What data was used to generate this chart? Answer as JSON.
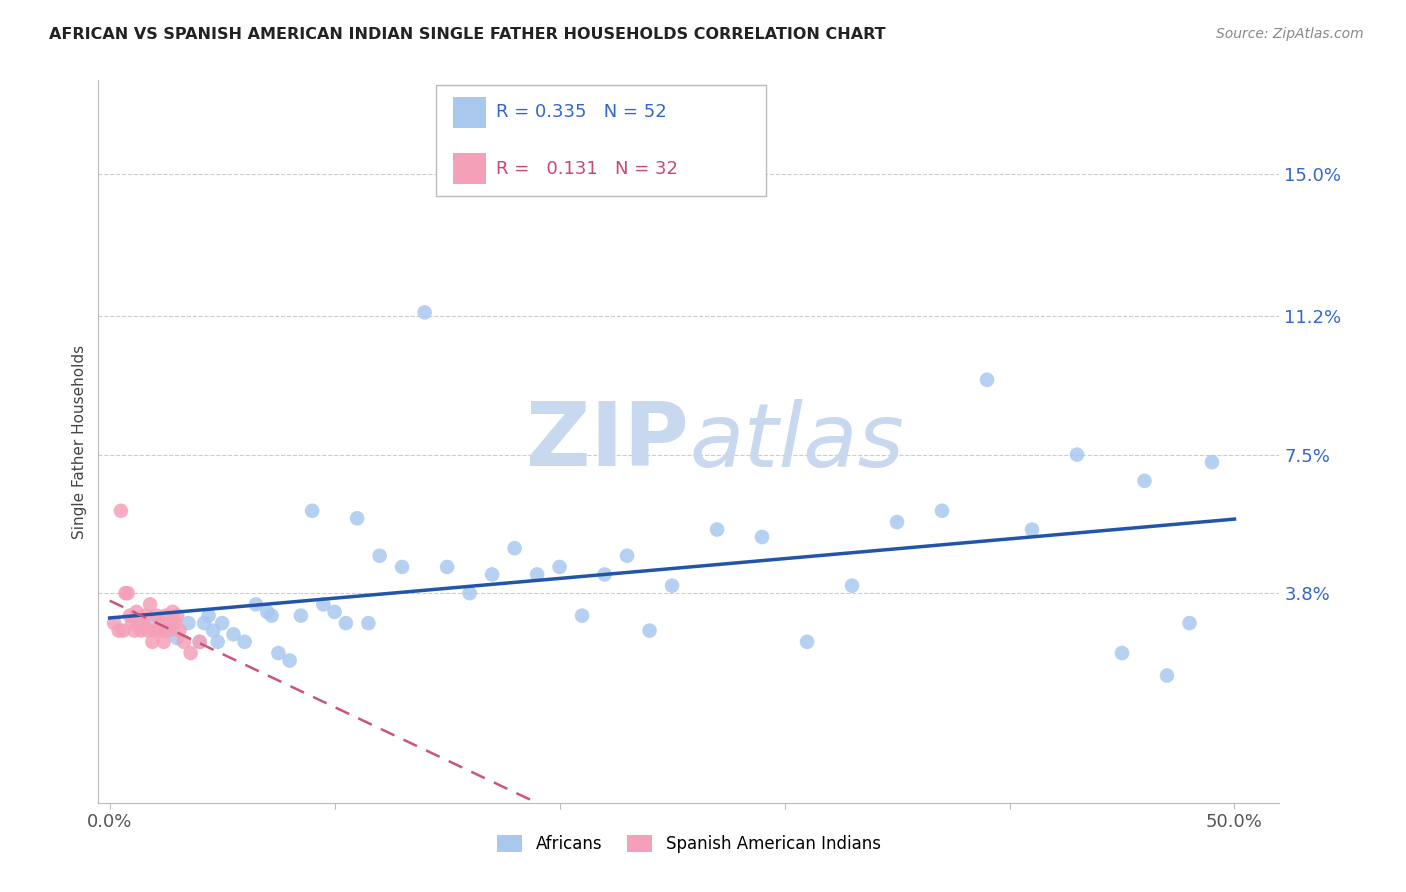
{
  "title": "AFRICAN VS SPANISH AMERICAN INDIAN SINGLE FATHER HOUSEHOLDS CORRELATION CHART",
  "source": "Source: ZipAtlas.com",
  "ylabel": "Single Father Households",
  "ytick_labels": [
    "15.0%",
    "11.2%",
    "7.5%",
    "3.8%"
  ],
  "ytick_values": [
    0.15,
    0.112,
    0.075,
    0.038
  ],
  "xlim": [
    -0.005,
    0.52
  ],
  "ylim": [
    -0.018,
    0.175
  ],
  "african_R": 0.335,
  "african_N": 52,
  "spanish_R": 0.131,
  "spanish_N": 32,
  "african_color": "#A8C8EE",
  "african_line_color": "#2255AA",
  "spanish_color": "#F4A0B8",
  "spanish_line_color": "#CC5577",
  "background_color": "#FFFFFF",
  "watermark_color": "#C8D8EE",
  "african_x": [
    0.02,
    0.025,
    0.03,
    0.035,
    0.04,
    0.042,
    0.044,
    0.046,
    0.048,
    0.05,
    0.055,
    0.06,
    0.065,
    0.07,
    0.072,
    0.075,
    0.08,
    0.085,
    0.09,
    0.095,
    0.1,
    0.105,
    0.11,
    0.115,
    0.12,
    0.13,
    0.14,
    0.15,
    0.16,
    0.17,
    0.18,
    0.19,
    0.2,
    0.21,
    0.22,
    0.23,
    0.24,
    0.25,
    0.27,
    0.29,
    0.31,
    0.33,
    0.35,
    0.37,
    0.39,
    0.41,
    0.43,
    0.45,
    0.46,
    0.47,
    0.48,
    0.49
  ],
  "african_y": [
    0.03,
    0.028,
    0.026,
    0.03,
    0.025,
    0.03,
    0.032,
    0.028,
    0.025,
    0.03,
    0.027,
    0.025,
    0.035,
    0.033,
    0.032,
    0.022,
    0.02,
    0.032,
    0.06,
    0.035,
    0.033,
    0.03,
    0.058,
    0.03,
    0.048,
    0.045,
    0.113,
    0.045,
    0.038,
    0.043,
    0.05,
    0.043,
    0.045,
    0.032,
    0.043,
    0.048,
    0.028,
    0.04,
    0.055,
    0.053,
    0.025,
    0.04,
    0.057,
    0.06,
    0.095,
    0.055,
    0.075,
    0.022,
    0.068,
    0.016,
    0.03,
    0.073
  ],
  "spanish_x": [
    0.002,
    0.004,
    0.005,
    0.006,
    0.007,
    0.008,
    0.009,
    0.01,
    0.011,
    0.012,
    0.013,
    0.014,
    0.015,
    0.016,
    0.017,
    0.018,
    0.019,
    0.02,
    0.021,
    0.022,
    0.023,
    0.024,
    0.025,
    0.026,
    0.027,
    0.028,
    0.029,
    0.03,
    0.031,
    0.033,
    0.036,
    0.04
  ],
  "spanish_y": [
    0.03,
    0.028,
    0.06,
    0.028,
    0.038,
    0.038,
    0.032,
    0.03,
    0.028,
    0.033,
    0.03,
    0.028,
    0.03,
    0.032,
    0.028,
    0.035,
    0.025,
    0.028,
    0.032,
    0.028,
    0.03,
    0.025,
    0.032,
    0.028,
    0.03,
    0.033,
    0.03,
    0.032,
    0.028,
    0.025,
    0.022,
    0.025
  ]
}
